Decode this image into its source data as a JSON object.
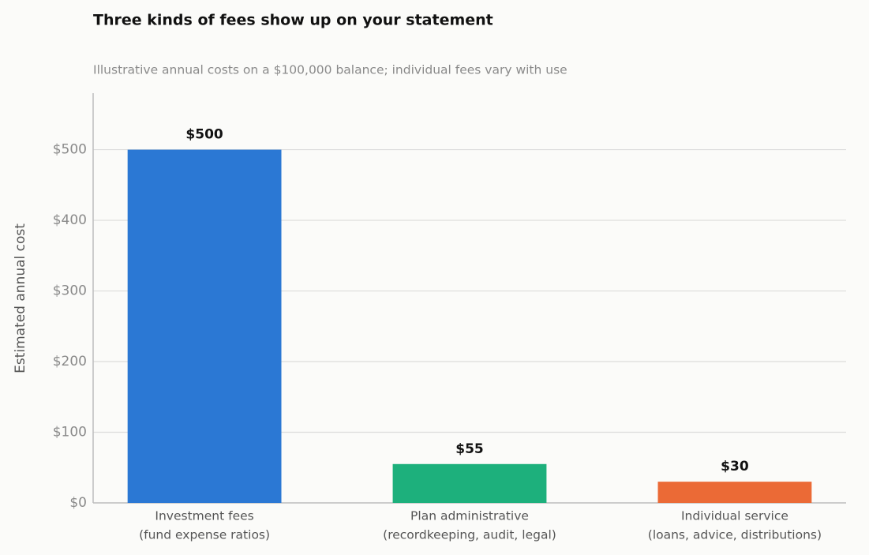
{
  "chart_data": {
    "type": "bar",
    "title": "Three kinds of fees show up on your statement",
    "subtitle": "Illustrative annual costs on a $100,000 balance; individual fees vary with use",
    "y_label": "Estimated annual cost",
    "categories": [
      [
        "Investment fees",
        "(fund expense ratios)"
      ],
      [
        "Plan administrative",
        "(recordkeeping, audit, legal)"
      ],
      [
        "Individual service",
        "(loans, advice, distributions)"
      ]
    ],
    "values": [
      500,
      55,
      30
    ],
    "value_labels": [
      "$500",
      "$55",
      "$30"
    ],
    "colors": [
      "#2b78d4",
      "#1db07c",
      "#eb6a36"
    ],
    "ylim": [
      0,
      580
    ],
    "yticks": [
      {
        "value": 0,
        "label": "$0"
      },
      {
        "value": 100,
        "label": "$100"
      },
      {
        "value": 200,
        "label": "$200"
      },
      {
        "value": 300,
        "label": "$300"
      },
      {
        "value": 400,
        "label": "$400"
      },
      {
        "value": 500,
        "label": "$500"
      }
    ],
    "grid": true
  }
}
